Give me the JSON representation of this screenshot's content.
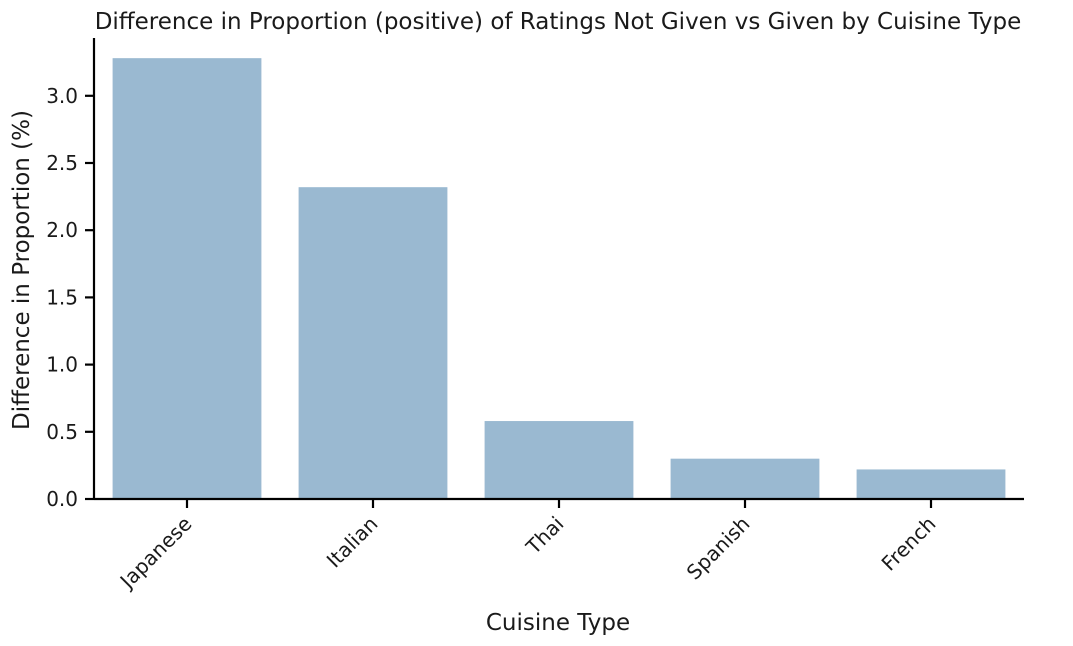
{
  "chart_data": {
    "type": "bar",
    "title": "Difference in Proportion (positive) of Ratings Not Given vs Given by Cuisine Type",
    "xlabel": "Cuisine Type",
    "ylabel": "Difference in Proportion (%)",
    "categories": [
      "Japanese",
      "Italian",
      "Thai",
      "Spanish",
      "French"
    ],
    "values": [
      3.28,
      2.32,
      0.58,
      0.3,
      0.22
    ],
    "ylim": [
      0,
      3.43
    ],
    "yticks": [
      "0.0",
      "0.5",
      "1.0",
      "1.5",
      "2.0",
      "2.5",
      "3.0"
    ],
    "bar_color": "#9ab9d1",
    "grid": false,
    "legend": "none"
  }
}
